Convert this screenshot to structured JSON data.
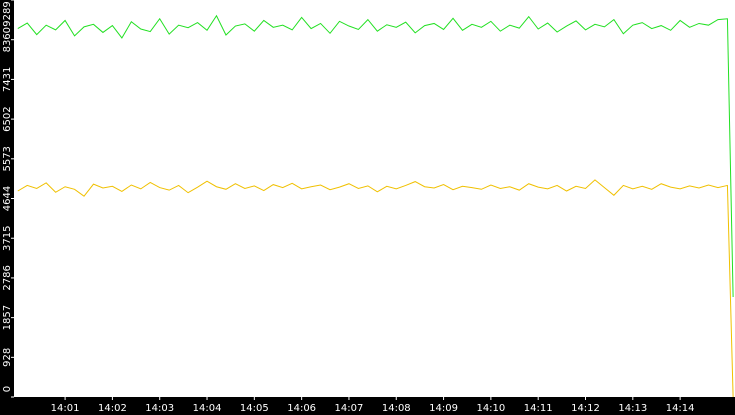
{
  "chart_data": {
    "type": "line",
    "x": [
      0,
      0.2,
      0.4,
      0.6,
      0.8,
      1,
      1.2,
      1.4,
      1.6,
      1.8,
      2,
      2.2,
      2.4,
      2.6,
      2.8,
      3,
      3.2,
      3.4,
      3.6,
      3.8,
      4,
      4.2,
      4.4,
      4.6,
      4.8,
      5,
      5.2,
      5.4,
      5.6,
      5.8,
      6,
      6.2,
      6.4,
      6.6,
      6.8,
      7,
      7.2,
      7.4,
      7.6,
      7.8,
      8,
      8.2,
      8.4,
      8.6,
      8.8,
      9,
      9.2,
      9.4,
      9.6,
      9.8,
      10,
      10.2,
      10.4,
      10.6,
      10.8,
      11,
      11.2,
      11.4,
      11.6,
      11.8,
      12,
      12.2,
      12.4,
      12.6,
      12.8,
      13,
      13.2,
      13.4,
      13.6,
      13.8,
      14,
      14.2,
      14.4,
      14.6,
      14.8,
      15,
      15.12
    ],
    "series": [
      {
        "color": "#22e022",
        "values": [
          8620,
          8750,
          8480,
          8700,
          8590,
          8810,
          8450,
          8660,
          8720,
          8530,
          8690,
          8400,
          8780,
          8610,
          8550,
          8850,
          8490,
          8700,
          8640,
          8760,
          8580,
          8920,
          8470,
          8680,
          8730,
          8560,
          8810,
          8650,
          8700,
          8590,
          8880,
          8620,
          8740,
          8510,
          8790,
          8680,
          8600,
          8830,
          8560,
          8710,
          8650,
          8770,
          8520,
          8690,
          8740,
          8600,
          8860,
          8580,
          8720,
          8650,
          8790,
          8560,
          8700,
          8630,
          8900,
          8610,
          8750,
          8540,
          8680,
          8800,
          8590,
          8720,
          8660,
          8830,
          8500,
          8700,
          8760,
          8620,
          8690,
          8580,
          8810,
          8650,
          8740,
          8700,
          8830,
          8850,
          2340
        ]
      },
      {
        "color": "#f0c000",
        "values": [
          4820,
          4950,
          4880,
          5010,
          4790,
          4920,
          4860,
          4700,
          4980,
          4890,
          4930,
          4810,
          4960,
          4870,
          5020,
          4900,
          4840,
          4950,
          4780,
          4910,
          5050,
          4920,
          4860,
          4990,
          4880,
          4940,
          4830,
          4970,
          4900,
          5000,
          4870,
          4920,
          4960,
          4850,
          4910,
          4990,
          4880,
          4940,
          4800,
          4930,
          4870,
          4950,
          5040,
          4920,
          4890,
          4970,
          4850,
          4930,
          4900,
          4860,
          4960,
          4880,
          4920,
          4840,
          4990,
          4910,
          4870,
          4950,
          4820,
          4930,
          4880,
          5080,
          4900,
          4720,
          4950,
          4870,
          4930,
          4860,
          4990,
          4910,
          4870,
          4940,
          4890,
          4960,
          4900,
          4950,
          0
        ]
      }
    ],
    "xlim": [
      -0.08,
      15.16
    ],
    "xticks": [
      {
        "value": 1,
        "label": "14:01"
      },
      {
        "value": 2,
        "label": "14:02"
      },
      {
        "value": 3,
        "label": "14:03"
      },
      {
        "value": 4,
        "label": "14:04"
      },
      {
        "value": 5,
        "label": "14:05"
      },
      {
        "value": 6,
        "label": "14:06"
      },
      {
        "value": 7,
        "label": "14:07"
      },
      {
        "value": 8,
        "label": "14:08"
      },
      {
        "value": 9,
        "label": "14:09"
      },
      {
        "value": 10,
        "label": "14:10"
      },
      {
        "value": 11,
        "label": "14:11"
      },
      {
        "value": 12,
        "label": "14:12"
      },
      {
        "value": 13,
        "label": "14:13"
      },
      {
        "value": 14,
        "label": "14:14"
      }
    ],
    "ylim": [
      0,
      9289
    ],
    "yticks": [
      0,
      928,
      1857,
      2786,
      3715,
      4644,
      5573,
      6502,
      7431,
      8360,
      9289
    ]
  }
}
